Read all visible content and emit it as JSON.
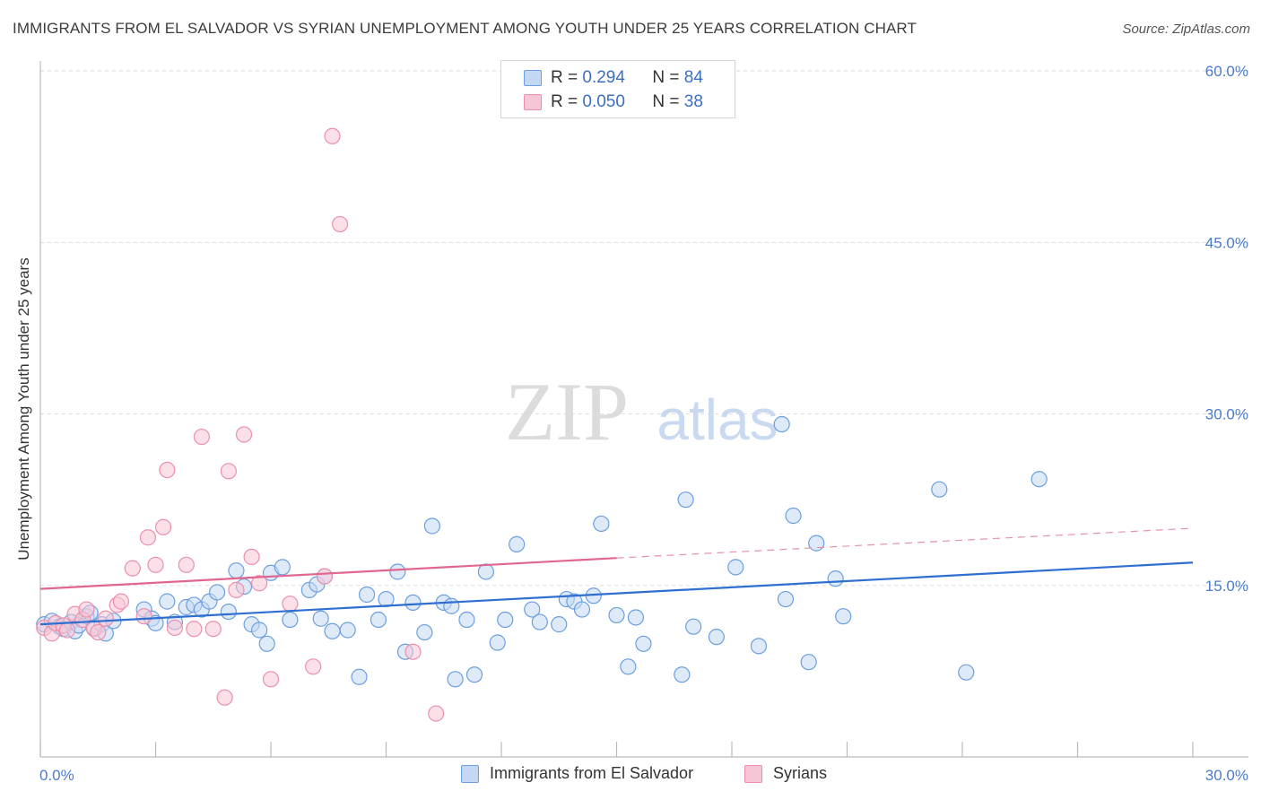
{
  "title": "IMMIGRANTS FROM EL SALVADOR VS SYRIAN UNEMPLOYMENT AMONG YOUTH UNDER 25 YEARS CORRELATION CHART",
  "source": "Source: ZipAtlas.com",
  "watermark": {
    "zip": "ZIP",
    "atlas": "atlas"
  },
  "legend": {
    "r_label": "R =",
    "n_label": "N =",
    "rows": [
      {
        "r": "0.294",
        "n": "84"
      },
      {
        "r": "0.050",
        "n": "38"
      }
    ]
  },
  "chart_data": {
    "type": "scatter",
    "title": "IMMIGRANTS FROM EL SALVADOR VS SYRIAN UNEMPLOYMENT AMONG YOUTH UNDER 25 YEARS CORRELATION CHART",
    "xlabel": "",
    "ylabel": "Unemployment Among Youth under 25 years",
    "xlim": [
      0,
      30
    ],
    "ylim": [
      0,
      60
    ],
    "x_tick_labels": [
      "0.0%",
      "30.0%"
    ],
    "y_ticks": [
      15,
      30,
      45,
      60
    ],
    "y_tick_labels": [
      "15.0%",
      "30.0%",
      "45.0%",
      "60.0%"
    ],
    "grid": true,
    "legend_position": "top-center",
    "series": [
      {
        "name": "Immigrants from El Salvador",
        "color": "#6b9fe0",
        "fill": "#c5d8f3",
        "r": 0.294,
        "n": 84,
        "trend": {
          "x0": 0,
          "y0": 11.6,
          "x1": 30,
          "y1": 17.0,
          "style": "solid"
        },
        "points": [
          [
            0.1,
            11.6
          ],
          [
            0.3,
            11.9
          ],
          [
            0.5,
            11.4
          ],
          [
            0.6,
            11.2
          ],
          [
            0.8,
            11.8
          ],
          [
            0.9,
            11.0
          ],
          [
            1.2,
            12.3
          ],
          [
            1.3,
            12.6
          ],
          [
            1.4,
            11.3
          ],
          [
            1.6,
            11.6
          ],
          [
            1.7,
            10.8
          ],
          [
            1.9,
            11.9
          ],
          [
            2.7,
            12.9
          ],
          [
            2.9,
            12.1
          ],
          [
            3.0,
            11.7
          ],
          [
            3.3,
            13.6
          ],
          [
            3.5,
            11.8
          ],
          [
            3.8,
            13.1
          ],
          [
            4.0,
            13.3
          ],
          [
            4.2,
            12.9
          ],
          [
            4.4,
            13.6
          ],
          [
            4.6,
            14.4
          ],
          [
            4.9,
            12.7
          ],
          [
            5.1,
            16.3
          ],
          [
            5.3,
            14.9
          ],
          [
            5.5,
            11.6
          ],
          [
            5.7,
            11.1
          ],
          [
            5.9,
            9.9
          ],
          [
            6.0,
            16.1
          ],
          [
            6.3,
            16.6
          ],
          [
            6.5,
            12.0
          ],
          [
            7.0,
            14.6
          ],
          [
            7.2,
            15.1
          ],
          [
            7.4,
            15.8
          ],
          [
            7.6,
            11.0
          ],
          [
            7.3,
            12.1
          ],
          [
            8.0,
            11.1
          ],
          [
            8.3,
            7.0
          ],
          [
            8.5,
            14.2
          ],
          [
            8.8,
            12.0
          ],
          [
            9.0,
            13.8
          ],
          [
            9.3,
            16.2
          ],
          [
            9.5,
            9.2
          ],
          [
            9.7,
            13.5
          ],
          [
            10.0,
            10.9
          ],
          [
            10.2,
            20.2
          ],
          [
            10.5,
            13.5
          ],
          [
            10.7,
            13.2
          ],
          [
            10.8,
            6.8
          ],
          [
            11.1,
            12.0
          ],
          [
            11.3,
            7.2
          ],
          [
            11.6,
            16.2
          ],
          [
            11.9,
            10.0
          ],
          [
            12.1,
            12.0
          ],
          [
            12.4,
            18.6
          ],
          [
            12.8,
            12.9
          ],
          [
            13.0,
            11.8
          ],
          [
            13.5,
            11.6
          ],
          [
            13.7,
            13.8
          ],
          [
            13.9,
            13.6
          ],
          [
            14.1,
            12.9
          ],
          [
            14.4,
            14.1
          ],
          [
            14.6,
            20.4
          ],
          [
            15.0,
            12.4
          ],
          [
            15.3,
            7.9
          ],
          [
            15.5,
            12.2
          ],
          [
            15.7,
            9.9
          ],
          [
            16.7,
            7.2
          ],
          [
            16.8,
            22.5
          ],
          [
            17.0,
            11.4
          ],
          [
            17.6,
            10.5
          ],
          [
            18.1,
            16.6
          ],
          [
            18.7,
            9.7
          ],
          [
            19.3,
            29.1
          ],
          [
            19.4,
            13.8
          ],
          [
            19.6,
            21.1
          ],
          [
            20.0,
            8.3
          ],
          [
            20.2,
            18.7
          ],
          [
            20.7,
            15.6
          ],
          [
            20.9,
            12.3
          ],
          [
            23.4,
            23.4
          ],
          [
            24.1,
            7.4
          ],
          [
            26.0,
            24.3
          ],
          [
            1.0,
            11.5
          ]
        ]
      },
      {
        "name": "Syrians",
        "color": "#ec8fae",
        "fill": "#f7c6d6",
        "r": 0.05,
        "n": 38,
        "trend": {
          "x0": 0,
          "y0": 14.7,
          "x1": 15,
          "y1": 17.4,
          "x2": 30,
          "y2": 20.0,
          "style": "solid-then-dashed"
        },
        "points": [
          [
            0.1,
            11.3
          ],
          [
            0.3,
            10.8
          ],
          [
            0.4,
            11.7
          ],
          [
            0.6,
            11.5
          ],
          [
            0.7,
            11.1
          ],
          [
            0.9,
            12.5
          ],
          [
            1.1,
            12.0
          ],
          [
            1.2,
            12.9
          ],
          [
            1.4,
            11.2
          ],
          [
            1.5,
            10.9
          ],
          [
            1.7,
            12.1
          ],
          [
            2.0,
            13.3
          ],
          [
            2.1,
            13.6
          ],
          [
            2.4,
            16.5
          ],
          [
            2.7,
            12.3
          ],
          [
            2.8,
            19.2
          ],
          [
            3.0,
            16.8
          ],
          [
            3.2,
            20.1
          ],
          [
            3.3,
            25.1
          ],
          [
            3.5,
            11.3
          ],
          [
            3.8,
            16.8
          ],
          [
            4.0,
            11.2
          ],
          [
            4.2,
            28.0
          ],
          [
            4.5,
            11.2
          ],
          [
            4.9,
            25.0
          ],
          [
            4.8,
            5.2
          ],
          [
            5.1,
            14.6
          ],
          [
            5.3,
            28.2
          ],
          [
            5.5,
            17.5
          ],
          [
            5.7,
            15.2
          ],
          [
            6.0,
            6.8
          ],
          [
            6.5,
            13.4
          ],
          [
            7.1,
            7.9
          ],
          [
            7.4,
            15.8
          ],
          [
            7.6,
            54.3
          ],
          [
            7.8,
            46.6
          ],
          [
            9.7,
            9.2
          ],
          [
            10.3,
            3.8
          ]
        ]
      }
    ]
  },
  "bottom_legend": [
    {
      "label": "Immigrants from El Salvador"
    },
    {
      "label": "Syrians"
    }
  ]
}
